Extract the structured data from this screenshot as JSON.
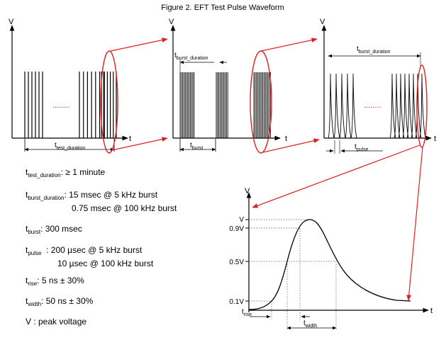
{
  "figure": {
    "title": "Figure 2. EFT Test Pulse Waveform",
    "axis_v": "V",
    "axis_t": "t",
    "ellipsis": "........",
    "dim_labels": {
      "test_duration": {
        "main": "t",
        "sub": "test_duration"
      },
      "burst_duration_panel2": {
        "main": "t",
        "sub": "burst_duration"
      },
      "burst_duration_panel3": {
        "main": "t",
        "sub": "burst_duration"
      },
      "burst": {
        "main": "t",
        "sub": "burst"
      },
      "pulse": {
        "main": "t",
        "sub": "pulse"
      },
      "rise": {
        "main": "t",
        "sub": "rise"
      },
      "width": {
        "main": "t",
        "sub": "width"
      }
    },
    "pulse_axis_ticks": [
      "V",
      "0.9V",
      "0.5V",
      "0.1V"
    ],
    "colors": {
      "callout": "#e02020",
      "line": "#000000"
    }
  },
  "specs": [
    {
      "main": "t",
      "sub": "test_duration",
      "text": ": ≥ 1 minute",
      "text2": ""
    },
    {
      "main": "t",
      "sub": "burst_duration",
      "text": ": 15 msec @ 5 kHz burst",
      "text2": "0.75 msec @ 100 kHz burst"
    },
    {
      "main": "t",
      "sub": "burst",
      "text": ": 300 msec",
      "text2": ""
    },
    {
      "main": "t",
      "sub": "pulse",
      "text": "  : 200 µsec @ 5 kHz burst",
      "text2": "10 µsec @ 100 kHz burst"
    },
    {
      "main": "t",
      "sub": "rise",
      "text": ": 5 ns ± 30%",
      "text2": ""
    },
    {
      "main": "t",
      "sub": "width",
      "text": ": 50 ns ± 30%",
      "text2": ""
    },
    {
      "main": "",
      "sub": "",
      "text": "V : peak voltage",
      "text2": ""
    }
  ]
}
